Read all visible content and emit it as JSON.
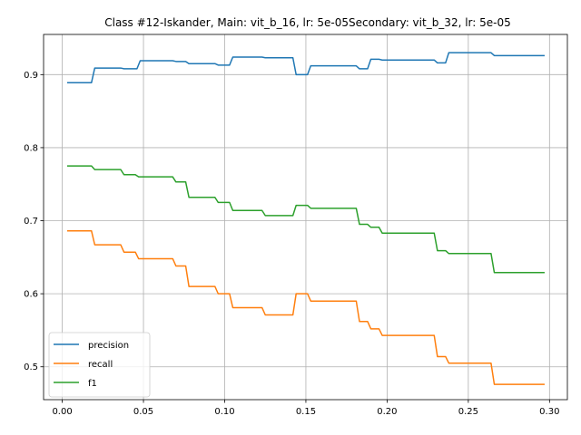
{
  "chart_data": {
    "type": "line",
    "title": "Class #12-Iskander, Main: vit_b_16, lr: 5e-05Secondary: vit_b_32, lr: 5e-05",
    "xlabel": "",
    "ylabel": "",
    "xlim": [
      -0.0115,
      0.311
    ],
    "ylim": [
      0.455,
      0.955
    ],
    "xticks": [
      0.0,
      0.05,
      0.1,
      0.15,
      0.2,
      0.25,
      0.3
    ],
    "xtick_labels": [
      "0.00",
      "0.05",
      "0.10",
      "0.15",
      "0.20",
      "0.25",
      "0.30"
    ],
    "yticks": [
      0.5,
      0.6,
      0.7,
      0.8,
      0.9
    ],
    "ytick_labels": [
      "0.5",
      "0.6",
      "0.7",
      "0.8",
      "0.9"
    ],
    "grid": true,
    "legend_position": "lower-left",
    "series": [
      {
        "name": "precision",
        "color": "#1f77b4",
        "x": [
          0.003,
          0.018,
          0.02,
          0.036,
          0.038,
          0.046,
          0.048,
          0.068,
          0.07,
          0.076,
          0.078,
          0.094,
          0.096,
          0.103,
          0.105,
          0.123,
          0.125,
          0.142,
          0.144,
          0.151,
          0.153,
          0.181,
          0.183,
          0.188,
          0.19,
          0.195,
          0.197,
          0.229,
          0.231,
          0.236,
          0.238,
          0.264,
          0.266,
          0.297
        ],
        "y": [
          0.889,
          0.889,
          0.909,
          0.909,
          0.908,
          0.908,
          0.919,
          0.919,
          0.918,
          0.918,
          0.915,
          0.915,
          0.913,
          0.913,
          0.924,
          0.924,
          0.923,
          0.923,
          0.9,
          0.9,
          0.912,
          0.912,
          0.908,
          0.908,
          0.921,
          0.921,
          0.92,
          0.92,
          0.916,
          0.916,
          0.93,
          0.93,
          0.926,
          0.926
        ]
      },
      {
        "name": "recall",
        "color": "#ff7f0e",
        "x": [
          0.003,
          0.018,
          0.02,
          0.036,
          0.038,
          0.045,
          0.047,
          0.068,
          0.07,
          0.076,
          0.078,
          0.094,
          0.096,
          0.103,
          0.105,
          0.123,
          0.125,
          0.142,
          0.144,
          0.151,
          0.153,
          0.181,
          0.183,
          0.188,
          0.19,
          0.195,
          0.197,
          0.229,
          0.231,
          0.236,
          0.238,
          0.264,
          0.266,
          0.297
        ],
        "y": [
          0.686,
          0.686,
          0.667,
          0.667,
          0.657,
          0.657,
          0.648,
          0.648,
          0.638,
          0.638,
          0.61,
          0.61,
          0.6,
          0.6,
          0.581,
          0.581,
          0.571,
          0.571,
          0.6,
          0.6,
          0.59,
          0.59,
          0.562,
          0.562,
          0.552,
          0.552,
          0.543,
          0.543,
          0.514,
          0.514,
          0.505,
          0.505,
          0.476,
          0.476
        ]
      },
      {
        "name": "f1",
        "color": "#2ca02c",
        "x": [
          0.003,
          0.018,
          0.02,
          0.036,
          0.038,
          0.045,
          0.047,
          0.068,
          0.07,
          0.076,
          0.078,
          0.094,
          0.096,
          0.103,
          0.105,
          0.123,
          0.125,
          0.142,
          0.144,
          0.151,
          0.153,
          0.181,
          0.183,
          0.188,
          0.19,
          0.195,
          0.197,
          0.229,
          0.231,
          0.236,
          0.238,
          0.264,
          0.266,
          0.297
        ],
        "y": [
          0.775,
          0.775,
          0.77,
          0.77,
          0.763,
          0.763,
          0.76,
          0.76,
          0.753,
          0.753,
          0.732,
          0.732,
          0.725,
          0.725,
          0.714,
          0.714,
          0.707,
          0.707,
          0.721,
          0.721,
          0.717,
          0.717,
          0.695,
          0.695,
          0.691,
          0.691,
          0.683,
          0.683,
          0.659,
          0.659,
          0.655,
          0.655,
          0.629,
          0.629
        ]
      }
    ]
  }
}
